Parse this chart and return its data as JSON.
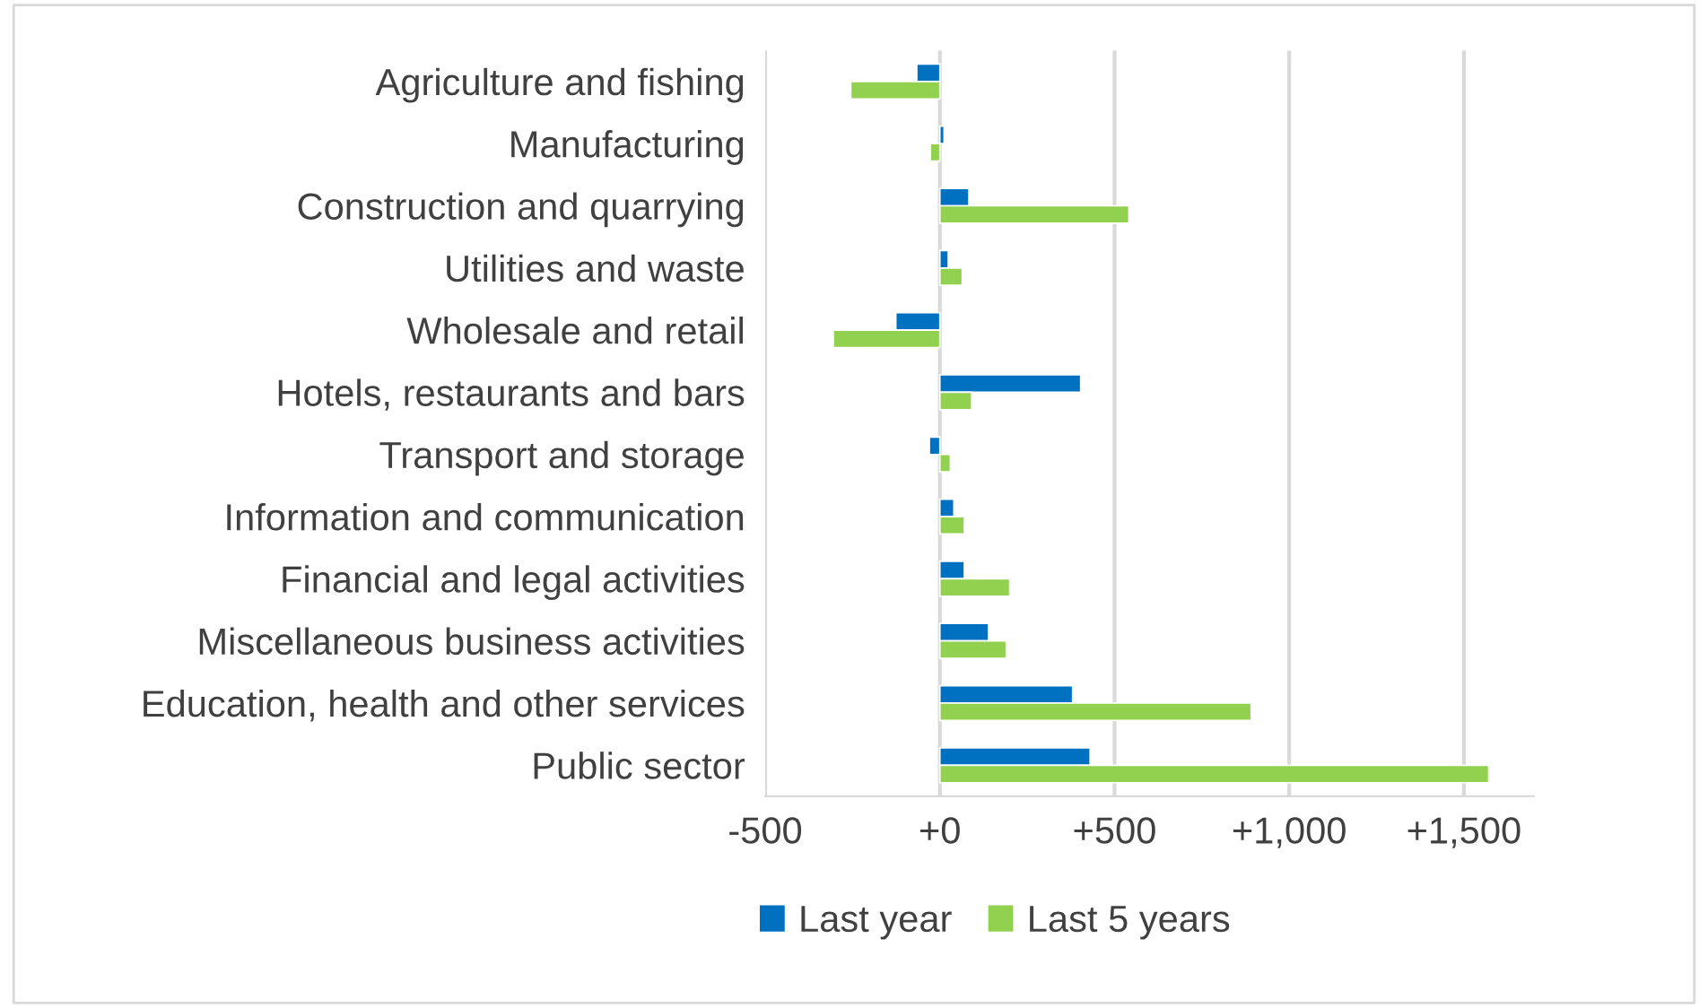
{
  "chart_data": {
    "type": "bar",
    "orientation": "horizontal",
    "categories": [
      "Agriculture and fishing",
      "Manufacturing",
      "Construction and quarrying",
      "Utilities and waste",
      "Wholesale and retail",
      "Hotels, restaurants and bars",
      "Transport and storage",
      "Information and communication",
      "Financial and legal activities",
      "Miscellaneous business activities",
      "Education, health and other services",
      "Public sector"
    ],
    "series": [
      {
        "name": "Last year",
        "color": "#0070c0",
        "values": [
          -66,
          12,
          83,
          24,
          -126,
          403,
          -30,
          40,
          70,
          139,
          380,
          430
        ]
      },
      {
        "name": "Last 5 years",
        "color": "#92d050",
        "values": [
          -255,
          -27,
          541,
          64,
          -305,
          91,
          30,
          70,
          200,
          190,
          891,
          1571
        ]
      }
    ],
    "xlim": [
      -500,
      1700
    ],
    "xticks": [
      -500,
      {
        "value": 0,
        "label": "+0"
      },
      {
        "value": 500,
        "label": "+500"
      },
      {
        "value": 1000,
        "label": "+1,000"
      },
      {
        "value": 1500,
        "label": "+1,500"
      }
    ],
    "grid": "x",
    "legend": "bottom"
  }
}
